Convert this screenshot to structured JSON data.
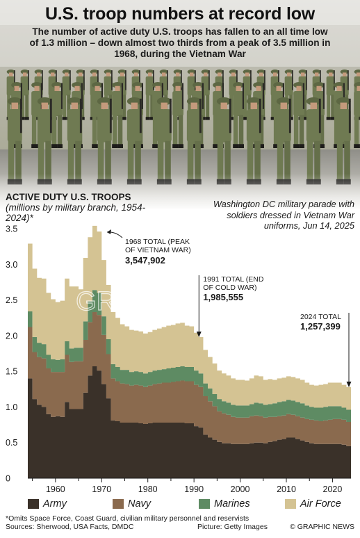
{
  "headline": "U.S. troop numbers at record low",
  "standfirst": "The number of active duty U.S. troops has fallen to an all time low of 1.3 million – down almost two thirds from a peak of 3.5 million in 1968, during the Vietnam War",
  "photo_caption": "Washington DC military parade with soldiers dressed in Vietnam War uniforms, Jun 14, 2025",
  "chart_heading": {
    "title": "ACTIVE DUTY U.S. TROOPS",
    "note": "(millions by military branch, 1954-2024)*"
  },
  "watermark": "GRAPHIC NEWS",
  "footnote": "*Omits Space Force, Coast Guard, civilian military personnel and reservists",
  "sources": "Sources: Sherwood, USA Facts, DMDC",
  "picture_credit": "Picture: Getty Images",
  "credit": "© GRAPHIC NEWS",
  "colors": {
    "army": "#3a3129",
    "navy": "#8a6a4e",
    "marines": "#5e8b63",
    "air_force": "#d4c393",
    "photo_sky": "#b9b3a6",
    "uniform": "#6f7a52"
  },
  "chart_data": {
    "type": "area",
    "stacked": true,
    "x": [
      1954,
      1955,
      1956,
      1957,
      1958,
      1959,
      1960,
      1961,
      1962,
      1963,
      1964,
      1965,
      1966,
      1967,
      1968,
      1969,
      1970,
      1971,
      1972,
      1973,
      1974,
      1975,
      1976,
      1977,
      1978,
      1979,
      1980,
      1981,
      1982,
      1983,
      1984,
      1985,
      1986,
      1987,
      1988,
      1989,
      1990,
      1991,
      1992,
      1993,
      1994,
      1995,
      1996,
      1997,
      1998,
      1999,
      2000,
      2001,
      2002,
      2003,
      2004,
      2005,
      2006,
      2007,
      2008,
      2009,
      2010,
      2011,
      2012,
      2013,
      2014,
      2015,
      2016,
      2017,
      2018,
      2019,
      2020,
      2021,
      2022,
      2023,
      2024
    ],
    "series": [
      {
        "name": "Army",
        "values": [
          1.4,
          1.11,
          1.03,
          1.0,
          0.9,
          0.86,
          0.87,
          0.86,
          1.07,
          0.97,
          0.97,
          0.97,
          1.2,
          1.44,
          1.57,
          1.51,
          1.32,
          1.12,
          0.81,
          0.8,
          0.78,
          0.78,
          0.78,
          0.78,
          0.77,
          0.76,
          0.77,
          0.78,
          0.78,
          0.78,
          0.78,
          0.78,
          0.78,
          0.78,
          0.77,
          0.77,
          0.73,
          0.71,
          0.61,
          0.57,
          0.54,
          0.51,
          0.49,
          0.49,
          0.48,
          0.48,
          0.48,
          0.48,
          0.49,
          0.5,
          0.5,
          0.49,
          0.51,
          0.52,
          0.54,
          0.55,
          0.57,
          0.57,
          0.55,
          0.53,
          0.51,
          0.49,
          0.48,
          0.48,
          0.48,
          0.48,
          0.48,
          0.48,
          0.47,
          0.45,
          0.45
        ]
      },
      {
        "name": "Navy",
        "values": [
          0.72,
          0.66,
          0.67,
          0.68,
          0.64,
          0.63,
          0.62,
          0.63,
          0.66,
          0.66,
          0.67,
          0.67,
          0.74,
          0.75,
          0.76,
          0.78,
          0.69,
          0.62,
          0.59,
          0.56,
          0.55,
          0.54,
          0.52,
          0.53,
          0.53,
          0.52,
          0.53,
          0.54,
          0.55,
          0.56,
          0.56,
          0.57,
          0.58,
          0.59,
          0.59,
          0.59,
          0.58,
          0.57,
          0.54,
          0.51,
          0.47,
          0.43,
          0.42,
          0.4,
          0.38,
          0.37,
          0.37,
          0.37,
          0.38,
          0.38,
          0.37,
          0.36,
          0.35,
          0.34,
          0.33,
          0.33,
          0.33,
          0.32,
          0.32,
          0.32,
          0.32,
          0.33,
          0.33,
          0.32,
          0.33,
          0.34,
          0.35,
          0.35,
          0.35,
          0.34,
          0.33
        ]
      },
      {
        "name": "Marines",
        "values": [
          0.22,
          0.21,
          0.2,
          0.2,
          0.19,
          0.18,
          0.17,
          0.18,
          0.19,
          0.19,
          0.19,
          0.19,
          0.26,
          0.29,
          0.31,
          0.31,
          0.26,
          0.21,
          0.2,
          0.2,
          0.19,
          0.2,
          0.19,
          0.19,
          0.19,
          0.19,
          0.19,
          0.19,
          0.19,
          0.19,
          0.2,
          0.2,
          0.2,
          0.2,
          0.2,
          0.2,
          0.2,
          0.19,
          0.18,
          0.18,
          0.17,
          0.17,
          0.17,
          0.17,
          0.17,
          0.17,
          0.17,
          0.17,
          0.17,
          0.18,
          0.18,
          0.18,
          0.18,
          0.19,
          0.2,
          0.2,
          0.2,
          0.2,
          0.2,
          0.2,
          0.19,
          0.18,
          0.18,
          0.19,
          0.19,
          0.19,
          0.18,
          0.18,
          0.17,
          0.17,
          0.17
        ]
      },
      {
        "name": "Air Force",
        "values": [
          0.95,
          0.96,
          0.91,
          0.92,
          0.87,
          0.84,
          0.81,
          0.82,
          0.88,
          0.87,
          0.86,
          0.82,
          0.89,
          0.9,
          0.9,
          0.86,
          0.79,
          0.76,
          0.73,
          0.69,
          0.64,
          0.61,
          0.59,
          0.57,
          0.57,
          0.56,
          0.56,
          0.57,
          0.58,
          0.59,
          0.6,
          0.6,
          0.61,
          0.61,
          0.58,
          0.57,
          0.53,
          0.51,
          0.47,
          0.44,
          0.43,
          0.4,
          0.39,
          0.38,
          0.37,
          0.36,
          0.36,
          0.35,
          0.36,
          0.38,
          0.38,
          0.35,
          0.35,
          0.33,
          0.33,
          0.33,
          0.33,
          0.33,
          0.33,
          0.33,
          0.32,
          0.31,
          0.31,
          0.32,
          0.32,
          0.33,
          0.33,
          0.33,
          0.32,
          0.32,
          0.31
        ]
      }
    ],
    "ylim": [
      0,
      3.5
    ],
    "yticks": [
      "0",
      "0.5",
      "1.0",
      "1.5",
      "2.0",
      "2.5",
      "3.0",
      "3.5"
    ],
    "xticks": [
      "1960",
      "1970",
      "1980",
      "1990",
      "2000",
      "2010",
      "2020"
    ],
    "annotations": [
      {
        "year": 1968,
        "label": "1968 TOTAL (PEAK OF VIETNAM WAR)",
        "label_line1": "1968 TOTAL (PEAK",
        "label_line2": "OF VIETNAM WAR)",
        "value": "3,547,902"
      },
      {
        "year": 1991,
        "label": "1991 TOTAL (END OF COLD WAR)",
        "label_line1": "1991 TOTAL (END",
        "label_line2": "OF COLD WAR)",
        "value": "1,985,555"
      },
      {
        "year": 2024,
        "label": "2024 TOTAL",
        "label_line1": "2024 TOTAL",
        "label_line2": "",
        "value": "1,257,399"
      }
    ],
    "legend": [
      "Army",
      "Navy",
      "Marines",
      "Air Force"
    ],
    "legend_position": "bottom",
    "grid": false
  }
}
